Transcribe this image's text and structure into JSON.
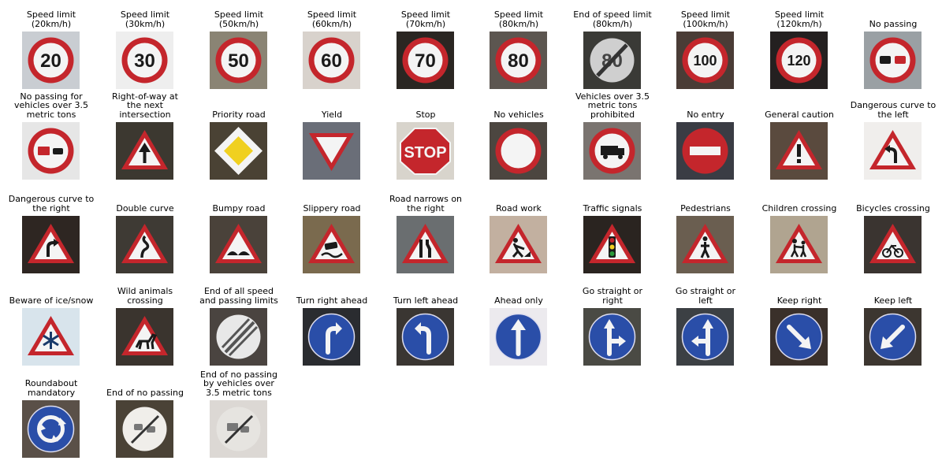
{
  "figure": {
    "description_kind": "grid of traffic sign sample images with class titles",
    "signs": [
      {
        "label": "Speed limit\n(20km/h)",
        "kind": "speed",
        "text": "20",
        "bg": "#c9cdd2"
      },
      {
        "label": "Speed limit\n(30km/h)",
        "kind": "speed",
        "text": "30",
        "bg": "#eeeeee"
      },
      {
        "label": "Speed limit\n(50km/h)",
        "kind": "speed",
        "text": "50",
        "bg": "#8a8474"
      },
      {
        "label": "Speed limit\n(60km/h)",
        "kind": "speed",
        "text": "60",
        "bg": "#d8d2cc"
      },
      {
        "label": "Speed limit\n(70km/h)",
        "kind": "speed",
        "text": "70",
        "bg": "#2a2622"
      },
      {
        "label": "Speed limit\n(80km/h)",
        "kind": "speed",
        "text": "80",
        "bg": "#5c5650"
      },
      {
        "label": "End of speed limit\n(80km/h)",
        "kind": "endspeed",
        "text": "80",
        "bg": "#3a3a36"
      },
      {
        "label": "Speed limit\n(100km/h)",
        "kind": "speed",
        "text": "100",
        "bg": "#4a3c36"
      },
      {
        "label": "Speed limit\n(120km/h)",
        "kind": "speed",
        "text": "120",
        "bg": "#242020"
      },
      {
        "label": "No passing",
        "kind": "nopassing",
        "text": "",
        "bg": "#9aa0a4"
      },
      {
        "label": "No passing for\nvehicles over 3.5\nmetric tons",
        "kind": "nopassingtruck",
        "text": "",
        "bg": "#e6e6e6"
      },
      {
        "label": "Right-of-way at\nthe next\nintersection",
        "kind": "tri-rightofway",
        "text": "",
        "bg": "#3c3830"
      },
      {
        "label": "Priority road",
        "kind": "priority",
        "text": "",
        "bg": "#4a4234"
      },
      {
        "label": "Yield",
        "kind": "yield",
        "text": "",
        "bg": "#6a6e78"
      },
      {
        "label": "Stop",
        "kind": "stop",
        "text": "STOP",
        "bg": "#d8d4cc"
      },
      {
        "label": "No vehicles",
        "kind": "novehicles",
        "text": "",
        "bg": "#4c4640"
      },
      {
        "label": "Vehicles over 3.5\nmetric tons\nprohibited",
        "kind": "notrucks",
        "text": "",
        "bg": "#7a7470"
      },
      {
        "label": "No entry",
        "kind": "noentry",
        "text": "",
        "bg": "#3a3c44"
      },
      {
        "label": "General caution",
        "kind": "tri-caution",
        "text": "",
        "bg": "#5a4a3e"
      },
      {
        "label": "Dangerous curve to\nthe left",
        "kind": "tri-curveleft",
        "text": "",
        "bg": "#f0eeec"
      },
      {
        "label": "Dangerous curve to\nthe right",
        "kind": "tri-curveright",
        "text": "",
        "bg": "#2e2622"
      },
      {
        "label": "Double curve",
        "kind": "tri-double",
        "text": "",
        "bg": "#3e3a34"
      },
      {
        "label": "Bumpy road",
        "kind": "tri-bumpy",
        "text": "",
        "bg": "#4a423a"
      },
      {
        "label": "Slippery road",
        "kind": "tri-slippery",
        "text": "",
        "bg": "#7a6a4e"
      },
      {
        "label": "Road narrows on\nthe right",
        "kind": "tri-narrows",
        "text": "",
        "bg": "#6a6e70"
      },
      {
        "label": "Road work",
        "kind": "tri-roadwork",
        "text": "",
        "bg": "#c2b0a0"
      },
      {
        "label": "Traffic signals",
        "kind": "tri-signals",
        "text": "",
        "bg": "#2a2420"
      },
      {
        "label": "Pedestrians",
        "kind": "tri-pedestrian",
        "text": "",
        "bg": "#6a5e50"
      },
      {
        "label": "Children crossing",
        "kind": "tri-children",
        "text": "",
        "bg": "#b0a490"
      },
      {
        "label": "Bicycles crossing",
        "kind": "tri-bicycle",
        "text": "",
        "bg": "#3a3430"
      },
      {
        "label": "Beware of ice/snow",
        "kind": "tri-snow",
        "text": "",
        "bg": "#d8e4ec"
      },
      {
        "label": "Wild animals\ncrossing",
        "kind": "tri-animal",
        "text": "",
        "bg": "#3a342e"
      },
      {
        "label": "End of all speed\nand passing limits",
        "kind": "endall",
        "text": "",
        "bg": "#4a4440"
      },
      {
        "label": "Turn right ahead",
        "kind": "blue-turnright",
        "text": "",
        "bg": "#2a2c30"
      },
      {
        "label": "Turn left ahead",
        "kind": "blue-turnleft",
        "text": "",
        "bg": "#3a3632"
      },
      {
        "label": "Ahead only",
        "kind": "blue-ahead",
        "text": "",
        "bg": "#eceaee"
      },
      {
        "label": "Go straight or\nright",
        "kind": "blue-straightright",
        "text": "",
        "bg": "#4a4a44"
      },
      {
        "label": "Go straight or\nleft",
        "kind": "blue-straightleft",
        "text": "",
        "bg": "#3c4044"
      },
      {
        "label": "Keep right",
        "kind": "blue-keepright",
        "text": "",
        "bg": "#3a302a"
      },
      {
        "label": "Keep left",
        "kind": "blue-keepleft",
        "text": "",
        "bg": "#3c3630"
      },
      {
        "label": "Roundabout\nmandatory",
        "kind": "blue-roundabout",
        "text": "",
        "bg": "#5a5048"
      },
      {
        "label": "End of no passing",
        "kind": "endnopassing",
        "text": "",
        "bg": "#4a4236"
      },
      {
        "label": "End of no passing\nby vehicles over\n3.5 metric tons",
        "kind": "endnopassingtruck",
        "text": "",
        "bg": "#dcd8d4"
      }
    ]
  },
  "colors": {
    "red": "#c4262c",
    "blue": "#2a4ea8",
    "white": "#f4f4f4",
    "yellow": "#f0d020",
    "black": "#1a1a1a"
  }
}
